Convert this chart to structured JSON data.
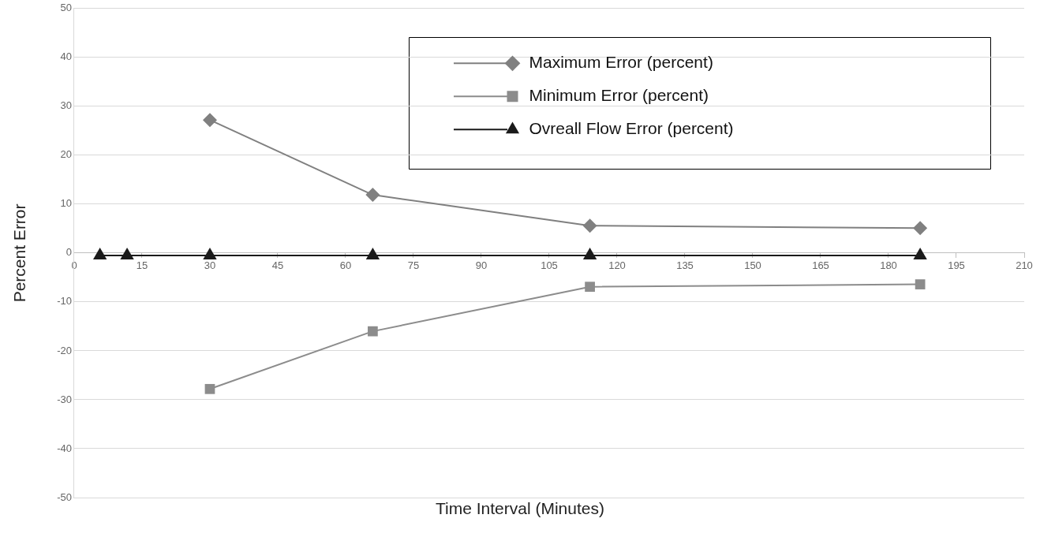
{
  "chart_data": {
    "type": "line",
    "xlabel": "Time Interval (Minutes)",
    "ylabel": "Percent Error",
    "x": [
      5.7,
      11.7,
      30,
      66,
      114,
      187
    ],
    "series": [
      {
        "name": "Maximum Error (percent)",
        "color": "#808080",
        "marker": "diamond",
        "values": [
          null,
          null,
          27.2,
          11.9,
          5.6,
          5.1
        ]
      },
      {
        "name": "Minimum Error (percent)",
        "color": "#8c8c8c",
        "marker": "square",
        "values": [
          null,
          null,
          -27.8,
          -16,
          -6.9,
          -6.4
        ]
      },
      {
        "name": "Ovreall Flow Error (percent)",
        "color": "#1a1a1a",
        "marker": "triangle",
        "values": [
          -0.5,
          -0.5,
          -0.5,
          -0.5,
          -0.5,
          -0.5
        ]
      }
    ],
    "xlim": [
      0,
      210
    ],
    "xticks": [
      0,
      15,
      30,
      45,
      60,
      75,
      90,
      105,
      120,
      135,
      150,
      165,
      180,
      195,
      210
    ],
    "ylim": [
      -50,
      50
    ],
    "yticks": [
      -50,
      -40,
      -30,
      -20,
      -10,
      0,
      10,
      20,
      30,
      40,
      50
    ],
    "grid": "y",
    "legend": "top right"
  }
}
